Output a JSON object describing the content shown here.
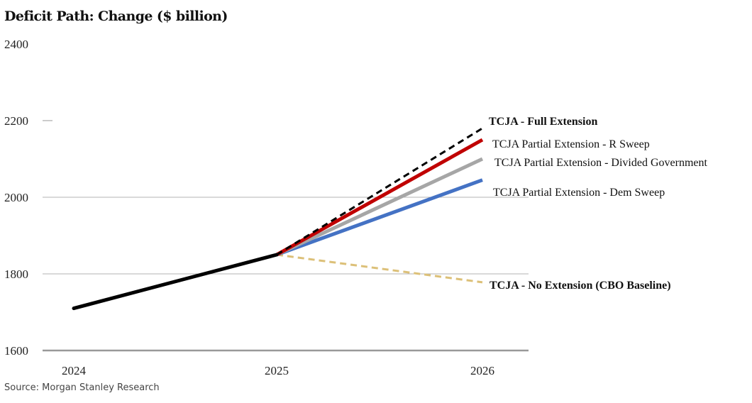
{
  "chart_data": {
    "type": "line",
    "title": "Deficit Path: Change ($ billion)",
    "source": "Source: Morgan Stanley Research",
    "x": [
      "2024",
      "2025",
      "2026"
    ],
    "ylim": [
      1600,
      2400
    ],
    "yticks": [
      "1600",
      "1800",
      "2000",
      "2200",
      "2400"
    ],
    "grid": true,
    "history": {
      "values": [
        1710,
        1850
      ],
      "color": "#000000"
    },
    "series": [
      {
        "name": "TCJA - Full Extension",
        "values": [
          null,
          1850,
          2180
        ],
        "color": "#000000",
        "dashed": true,
        "bold_label": true
      },
      {
        "name": "TCJA Partial Extension - R Sweep",
        "values": [
          null,
          1850,
          2150
        ],
        "color": "#c00000",
        "dashed": false,
        "bold_label": false
      },
      {
        "name": "TCJA Partial Extension - Divided Government",
        "values": [
          null,
          1850,
          2100
        ],
        "color": "#a6a6a6",
        "dashed": false,
        "bold_label": false
      },
      {
        "name": "TCJA Partial Extension - Dem Sweep",
        "values": [
          null,
          1850,
          2045
        ],
        "color": "#4472c4",
        "dashed": false,
        "bold_label": false
      },
      {
        "name": "TCJA - No Extension  (CBO Baseline)",
        "values": [
          null,
          1850,
          1778
        ],
        "color": "#dcc078",
        "dashed": true,
        "bold_label": true
      }
    ]
  }
}
